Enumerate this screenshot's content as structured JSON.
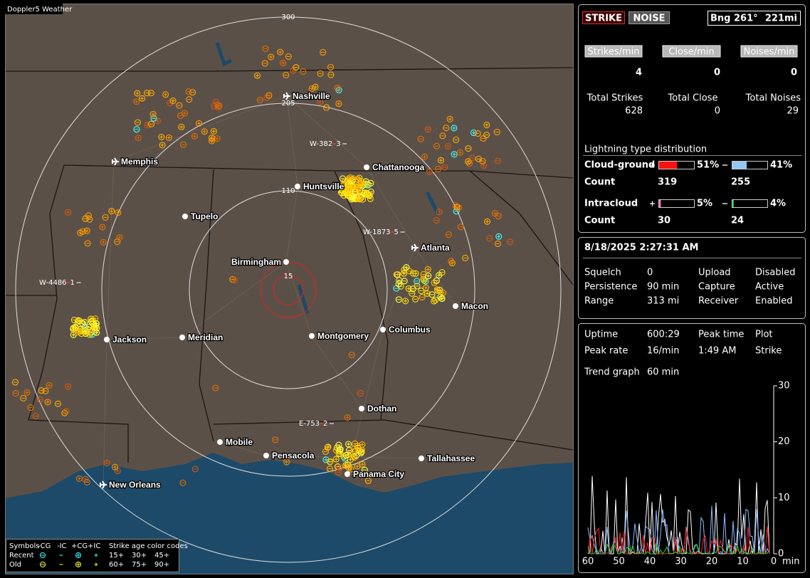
{
  "app_title": "Doppler5 Weather",
  "map": {
    "range_rings": [
      "300",
      "205",
      "110",
      "15"
    ],
    "cities": [
      {
        "name": "Nashville",
        "airport": true
      },
      {
        "name": "Memphis",
        "airport": true
      },
      {
        "name": "Chattanooga",
        "airport": false
      },
      {
        "name": "Huntsville",
        "airport": false
      },
      {
        "name": "Tupelo",
        "airport": false
      },
      {
        "name": "Atlanta",
        "airport": true
      },
      {
        "name": "Birmingham",
        "airport": false
      },
      {
        "name": "Macon",
        "airport": false
      },
      {
        "name": "Jackson",
        "airport": false
      },
      {
        "name": "Meridian",
        "airport": false
      },
      {
        "name": "Montgomery",
        "airport": false
      },
      {
        "name": "Columbus",
        "airport": false
      },
      {
        "name": "Dothan",
        "airport": false
      },
      {
        "name": "Mobile",
        "airport": false
      },
      {
        "name": "Pensacola",
        "airport": false
      },
      {
        "name": "Tallahassee",
        "airport": false
      },
      {
        "name": "Panama City",
        "airport": false
      },
      {
        "name": "New Orleans",
        "airport": true
      }
    ],
    "storm_labels": [
      {
        "id": "W-382",
        "count": "3"
      },
      {
        "id": "W-1873",
        "count": "5"
      },
      {
        "id": "W-4486",
        "count": "1"
      },
      {
        "id": "E-753",
        "count": "2"
      }
    ],
    "legend": {
      "header": [
        "Symbols",
        "-CG",
        "-IC",
        "+CG",
        "+IC",
        "Strike age color codes"
      ],
      "rows": [
        {
          "label": "Recent",
          "ages": [
            "15+",
            "30+",
            "45+"
          ]
        },
        {
          "label": "Old",
          "ages": [
            "60+",
            "75+",
            "90+"
          ]
        }
      ]
    }
  },
  "controls": {
    "strike": "STRIKE",
    "noise": "NOISE",
    "bearing": "Bng 261°",
    "distance": "221mi"
  },
  "rates": [
    {
      "label": "Strikes/min",
      "value": "4",
      "total_label": "Total Strikes",
      "total": "628"
    },
    {
      "label": "Close/min",
      "value": "0",
      "total_label": "Total Close",
      "total": "0"
    },
    {
      "label": "Noises/min",
      "value": "0",
      "total_label": "Total Noises",
      "total": "29"
    }
  ],
  "distribution": {
    "title": "Lightning type distribution",
    "rows": [
      {
        "label": "Cloud-ground",
        "pos_pct": "51%",
        "neg_pct": "41%",
        "count_label": "Count",
        "pos_count": "319",
        "neg_count": "255"
      },
      {
        "label": "Intracloud",
        "pos_pct": "5%",
        "neg_pct": "4%",
        "count_label": "Count",
        "pos_count": "30",
        "neg_count": "24"
      }
    ]
  },
  "status": {
    "datetime": "8/18/2025 2:27:31 AM",
    "items": [
      {
        "label": "Squelch",
        "value": "0",
        "color": "#ffffff"
      },
      {
        "label": "Upload",
        "value": "Disabled",
        "color": "#aaaaaa"
      },
      {
        "label": "Persistence",
        "value": "90 min",
        "color": "#ffffff"
      },
      {
        "label": "Capture",
        "value": "Active",
        "color": "#22ee22"
      },
      {
        "label": "Range",
        "value": "313 mi",
        "color": "#ffffff"
      },
      {
        "label": "Receiver",
        "value": "Enabled",
        "color": "#22ee22"
      }
    ]
  },
  "stats": {
    "items": [
      {
        "label": "Uptime",
        "value": "600:29"
      },
      {
        "label": "Peak time",
        "value": "Plot"
      },
      {
        "label": "Peak rate",
        "value": "16/min"
      },
      {
        "label": "1:49 AM",
        "value": "Strike"
      },
      {
        "label": "Trend graph",
        "value": "60 min"
      }
    ]
  },
  "trend": {
    "yticks": [
      "30",
      "20",
      "10",
      "0"
    ],
    "xticks": [
      "60",
      "50",
      "40",
      "30",
      "20",
      "10",
      "0"
    ],
    "x_unit": "min"
  }
}
